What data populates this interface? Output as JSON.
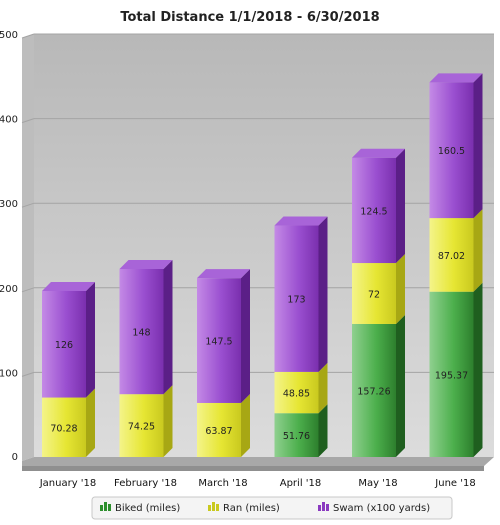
{
  "chart_data": {
    "type": "bar",
    "stacked": true,
    "title": "Total Distance 1/1/2018 - 6/30/2018",
    "categories": [
      "January '18",
      "February '18",
      "March '18",
      "April '18",
      "May '18",
      "June '18"
    ],
    "series": [
      {
        "name": "Biked (miles)",
        "values": [
          0,
          0,
          0,
          51.76,
          157.26,
          195.37
        ],
        "labels": [
          "",
          "",
          "",
          "51.76",
          "157.26",
          "195.37"
        ]
      },
      {
        "name": "Ran (miles)",
        "values": [
          70.28,
          74.25,
          63.87,
          48.85,
          72,
          87.02
        ],
        "labels": [
          "70.28",
          "74.25",
          "63.87",
          "48.85",
          "72",
          "87.02"
        ]
      },
      {
        "name": "Swam (x100 yards)",
        "values": [
          126,
          148,
          147.5,
          173,
          124.5,
          160.5
        ],
        "labels": [
          "126",
          "148",
          "147.5",
          "173",
          "124.5",
          "160.5"
        ]
      }
    ],
    "ylim": [
      0,
      500
    ],
    "yticks": [
      0,
      100,
      200,
      300,
      400,
      500
    ],
    "grid": true,
    "legend_position": "bottom",
    "colors": {
      "biked": "#3a9a3a",
      "ran": "#e0e02a",
      "swam": "#8f3fc4",
      "plot_bg": "#cfcfcf"
    }
  }
}
